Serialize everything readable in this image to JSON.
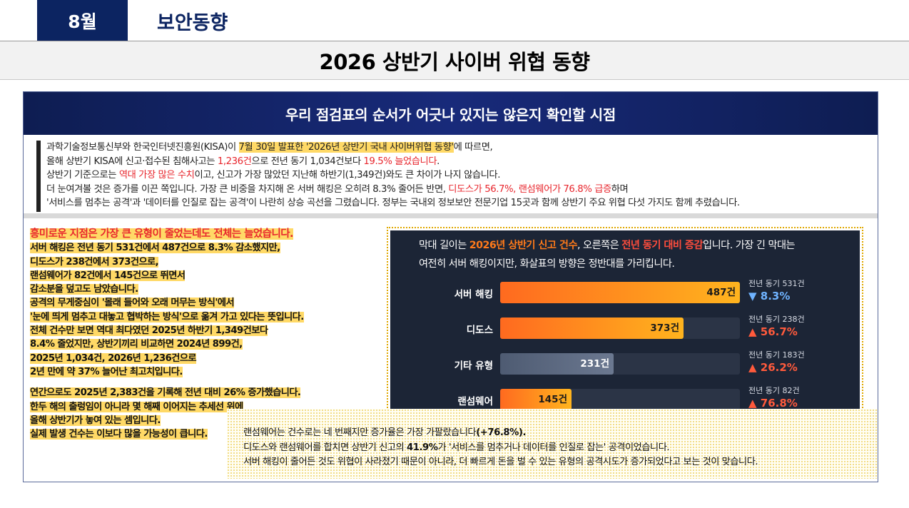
{
  "header": {
    "month": "8월",
    "section": "보안동향",
    "title": "2026 상반기 사이버 위협 동향"
  },
  "panel": {
    "title": "우리 점검표의 순서가 어긋나 있지는 않은지 확인할 시점"
  },
  "intro": {
    "l1_a": "과학기술정보통신부와 한국인터넷진흥원(KISA)이 ",
    "l1_hl": "7월 30일 발표한 '2026년 상반기 국내 사이버위협 동향'",
    "l1_b": "에 따르면,",
    "l2_a": "올해 상반기 KISA에 신고·접수된 침해사고는 ",
    "l2_red1": "1,236건",
    "l2_b": "으로 전년 동기 1,034건보다 ",
    "l2_red2": "19.5% 늘었습니다",
    "l2_c": ".",
    "l3_a": "상반기 기준으로는 ",
    "l3_red": "역대 가장 많은 수치",
    "l3_b": "이고, 신고가 가장 많았던 지난해 하반기(1,349건)와도 큰 차이가 나지 않습니다.",
    "l4_a": "더 눈여겨볼 것은 증가를 이끈 쪽입니다. 가장 큰 비중을 차지해 온 서버 해킹은 오히려 8.3% 줄어든 반면, ",
    "l4_red": "디도스가 56.7%, 랜섬웨어가 76.8% 급증",
    "l4_b": "하며",
    "l5": "'서비스를 멈추는 공격'과 '데이터를 인질로 잡는 공격'이 나란히 상승 곡선을 그렸습니다. 정부는 국내외 정보보안 전문기업 15곳과 함께 상반기 주요 위협 다섯 가지도 함께 추렸습니다."
  },
  "left": {
    "lines": [
      "흥미로운 지점은 가장 큰 유형이 줄었는데도 전체는 늘었습니다.",
      "서버 해킹은 전년 동기 531건에서 487건으로 8.3% 감소했지만,",
      "디도스가 238건에서 373건으로,",
      "랜섬웨어가 82건에서 145건으로 뛰면서",
      "감소분을 덮고도 남았습니다.",
      "공격의 무게중심이 '몰래 들어와 오래 머무는 방식'에서",
      "'눈에 띄게 멈추고 대놓고 협박하는 방식'으로 옮겨 가고 있다는 뜻입니다.",
      "전체 건수만 보면 역대 최다였던 2025년 하반기 1,349건보다",
      "8.4% 줄었지만, 상반기끼리 비교하면 2024년 899건,",
      "2025년 1,034건, 2026년 1,236건으로",
      "2년 만에 약 37% 늘어난 최고치입니다."
    ],
    "lines2": [
      "연간으로도 2025년 2,383건을 기록해 전년 대비 26% 증가했습니다.",
      "한두 해의 출렁임이 아니라 몇 해째 이어지는 추세선 위에",
      "올해 상반기가 놓여 있는 셈입니다.",
      "실제 발생 건수는 이보다 많을 가능성이 큽니다."
    ]
  },
  "chart_desc": {
    "a": "막대 길이는 ",
    "o": "2026년 상반기 신고 건수",
    "b": ", 오른쪽은 ",
    "r": "전년 동기 대비 증감",
    "c": "입니다. 가장 긴 막대는",
    "line2": "여전히 서버 해킹이지만, 화살표의 방향은 정반대를 가리킵니다."
  },
  "chart_data": {
    "type": "bar",
    "orientation": "horizontal",
    "categories": [
      "서버 해킹",
      "디도스",
      "기타 유형",
      "랜섬웨어"
    ],
    "values": [
      487,
      373,
      231,
      145
    ],
    "value_labels": [
      "487건",
      "373건",
      "231건",
      "145건"
    ],
    "prev_labels": [
      "전년 동기 531건",
      "전년 동기 238건",
      "전년 동기 183건",
      "전년 동기 82건"
    ],
    "prev_values": [
      531,
      238,
      183,
      82
    ],
    "changes": [
      "▼ 8.3%",
      "▲ 56.7%",
      "▲ 26.2%",
      "▲ 76.8%"
    ],
    "change_dir": [
      "down",
      "up",
      "up",
      "up"
    ],
    "max": 487,
    "colors": {
      "orange_start": "#ff6a1f",
      "orange_end": "#ffb41e",
      "gray": "#5a667c",
      "down": "#6fb3ff",
      "up": "#ff5a3c",
      "background": "#1c2536"
    }
  },
  "bottom": {
    "l1_a": "랜섬웨어는 건수로는 네 번째지만 증가율은 가장 가팔랐습니다",
    "l1_b": "(+76.8%).",
    "l2_a": "디도스와 랜섬웨어를 합치면 상반기 신고의 ",
    "l2_b": "41.9%",
    "l2_c": "가 '서비스를 멈추거나 데이터를 인질로 잡는' 공격이었습니다.",
    "l3": "서버 해킹이 줄어든 것도 위협이 사라졌기 때문이 아니라, 더 빠르게 돈을 벌 수 있는 유형의 공격시도가 증가되었다고 보는 것이 맞습니다."
  }
}
